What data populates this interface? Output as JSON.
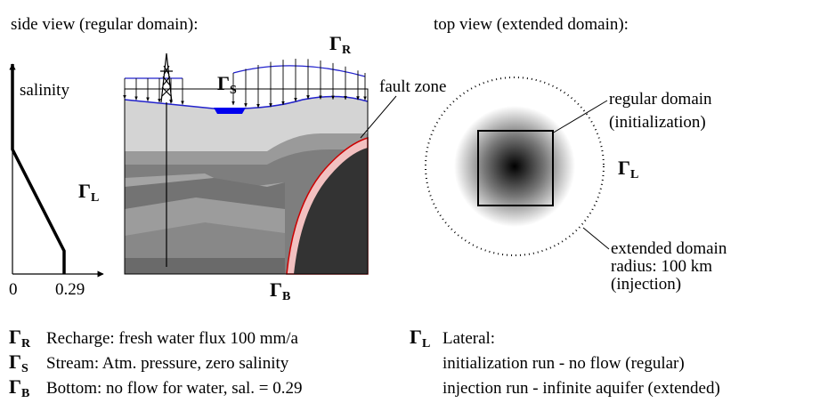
{
  "side_view": {
    "title": "side view (regular domain):",
    "salinity_axis": {
      "label": "salinity",
      "min_label": 0,
      "max_label": 0.29
    },
    "labels": {
      "recharge": {
        "symbol": "Γ",
        "sub": "R"
      },
      "stream": {
        "symbol": "Γ",
        "sub": "S"
      },
      "lateral": {
        "symbol": "Γ",
        "sub": "L"
      },
      "bottom": {
        "symbol": "Γ",
        "sub": "B"
      }
    },
    "fault_zone": "fault zone"
  },
  "top_view": {
    "title": "top view (extended domain):",
    "regular_domain": [
      "regular domain",
      "(initialization)"
    ],
    "lateral": {
      "symbol": "Γ",
      "sub": "L"
    },
    "extended_domain": [
      "extended domain",
      "radius: 100 km",
      "(injection)"
    ]
  },
  "legend": [
    {
      "symbol": "Γ",
      "sub": "R",
      "lines": [
        "Recharge: fresh water flux 100 mm/a"
      ]
    },
    {
      "symbol": "Γ",
      "sub": "S",
      "lines": [
        "Stream: Atm. pressure, zero salinity"
      ]
    },
    {
      "symbol": "Γ",
      "sub": "B",
      "lines": [
        "Bottom: no flow for water, sal. = 0.29"
      ]
    },
    {
      "symbol": "Γ",
      "sub": "L",
      "lines": [
        "Lateral:",
        "initialization run - no flow (regular)",
        "injection run - infinite aquifer (extended)"
      ]
    }
  ]
}
